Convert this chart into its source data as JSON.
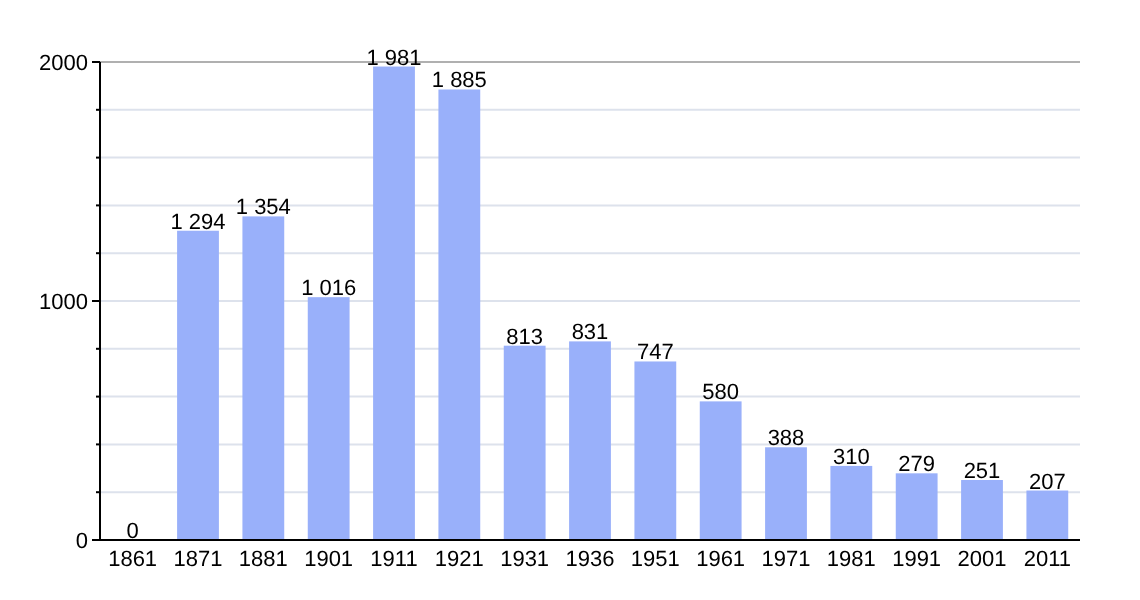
{
  "chart_data": {
    "type": "bar",
    "categories": [
      "1861",
      "1871",
      "1881",
      "1901",
      "1911",
      "1921",
      "1931",
      "1936",
      "1951",
      "1961",
      "1971",
      "1981",
      "1991",
      "2001",
      "2011"
    ],
    "values": [
      0,
      1294,
      1354,
      1016,
      1981,
      1885,
      813,
      831,
      747,
      580,
      388,
      310,
      279,
      251,
      207
    ],
    "value_labels": [
      "0",
      "1 294",
      "1 354",
      "1 016",
      "1 981",
      "1 885",
      "813",
      "831",
      "747",
      "580",
      "388",
      "310",
      "279",
      "251",
      "207"
    ],
    "color": "#99b0fa",
    "ylim": [
      0,
      2000
    ],
    "yticks": [
      0,
      {
        "value": 200,
        "label": null
      },
      {
        "value": 400,
        "label": null
      },
      {
        "value": 600,
        "label": null
      },
      {
        "value": 800,
        "label": null
      },
      1000,
      {
        "value": 1200,
        "label": null
      },
      {
        "value": 1400,
        "label": null
      },
      {
        "value": 1600,
        "label": null
      },
      {
        "value": 1800,
        "label": null
      },
      2000
    ],
    "grid": true
  }
}
